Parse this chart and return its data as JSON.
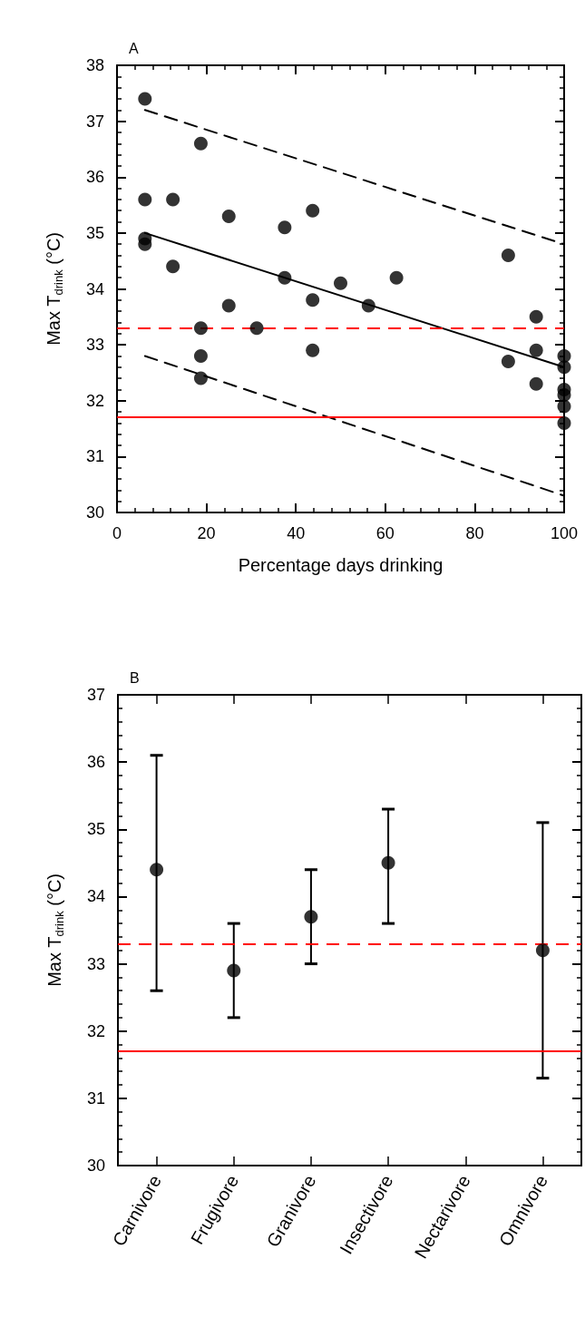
{
  "chart_data": [
    {
      "type": "scatter",
      "title": "A",
      "xlabel": "Percentage days drinking",
      "ylabel": "Max T$_{drink}$ (°C)",
      "xlim": [
        0,
        100
      ],
      "xticks": [
        0,
        20,
        40,
        60,
        80,
        100
      ],
      "ylim": [
        30,
        38
      ],
      "yticks": [
        30,
        31,
        32,
        33,
        34,
        35,
        36,
        37,
        38
      ],
      "marker": "circle",
      "series": [
        {
          "color": "#000000",
          "x": [
            6.25,
            18.75,
            6.25,
            12.5,
            25,
            37.5,
            43.75,
            6.25,
            6.25,
            12.5,
            37.5,
            50,
            43.75,
            25,
            18.75,
            31.25,
            18.75,
            18.75,
            43.75,
            56.25,
            62.5,
            87.5,
            87.5,
            93.75,
            93.75,
            93.75,
            100,
            100,
            100,
            100,
            100,
            100
          ],
          "values": [
            37.4,
            36.6,
            35.6,
            35.6,
            35.3,
            35.1,
            35.4,
            34.9,
            34.8,
            34.4,
            34.2,
            34.1,
            33.8,
            33.7,
            33.3,
            33.3,
            32.8,
            32.4,
            32.9,
            33.7,
            34.2,
            34.6,
            32.7,
            33.5,
            32.9,
            32.3,
            32.8,
            32.6,
            32.2,
            32.1,
            31.9,
            31.6
          ]
        },
        {
          "type": "line",
          "color": "#000000",
          "marker": "none",
          "line_style": "solid",
          "x": [
            6.25,
            100
          ],
          "values": [
            35.0,
            32.6
          ]
        },
        {
          "type": "line",
          "color": "#000000",
          "marker": "none",
          "line_style": "dashed",
          "x": [
            6.25,
            100
          ],
          "values": [
            37.2,
            34.8
          ]
        },
        {
          "type": "line",
          "color": "#000000",
          "marker": "none",
          "line_style": "dashed",
          "x": [
            6.25,
            100
          ],
          "values": [
            32.8,
            30.3
          ]
        }
      ],
      "ref_lines": [
        {
          "axis": "y",
          "value": 33.3,
          "color": "#ff0000",
          "line_style": "dashed"
        },
        {
          "axis": "y",
          "value": 31.7,
          "color": "#ff0000",
          "line_style": "solid"
        }
      ]
    },
    {
      "type": "scatter",
      "title": "B",
      "ylabel": "Max T$_{drink}$ (°C)",
      "categories": [
        "Carnivore",
        "Frugivore",
        "Granivore",
        "Insectivore",
        "Nectarivore",
        "Omnivore"
      ],
      "ylim": [
        30,
        37
      ],
      "yticks": [
        30,
        31,
        32,
        33,
        34,
        35,
        36,
        37
      ],
      "marker": "circle",
      "series": [
        {
          "color": "#000000",
          "values": [
            34.4,
            32.9,
            33.7,
            34.5,
            null,
            33.2
          ],
          "errors": [
            [
              32.6,
              36.1
            ],
            [
              32.2,
              33.6
            ],
            [
              33.0,
              34.4
            ],
            [
              33.6,
              35.3
            ],
            null,
            [
              31.3,
              35.1
            ]
          ]
        }
      ],
      "ref_lines": [
        {
          "axis": "y",
          "value": 33.3,
          "color": "#ff0000",
          "line_style": "dashed"
        },
        {
          "axis": "y",
          "value": 31.7,
          "color": "#ff0000",
          "line_style": "solid"
        }
      ]
    }
  ]
}
